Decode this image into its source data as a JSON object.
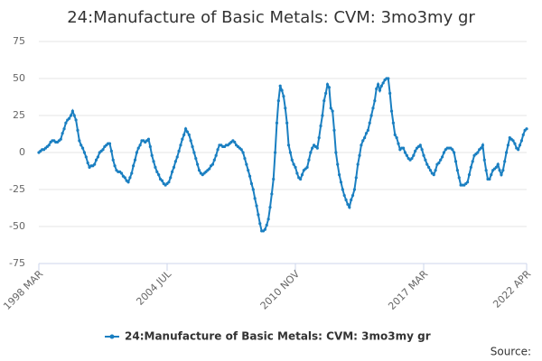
{
  "chart_data": {
    "type": "line",
    "title": "24:Manufacture of Basic Metals: CVM: 3mo3my gr",
    "source": "Source:",
    "categories": [
      "1998 MAR",
      null,
      null,
      null,
      null,
      null,
      null,
      null,
      null,
      null,
      null,
      null,
      null,
      null,
      null,
      null,
      null,
      null,
      null,
      null,
      null,
      null,
      null,
      null,
      null,
      null,
      null,
      null,
      null,
      null,
      null,
      null,
      null,
      null,
      null,
      null,
      null,
      null,
      null,
      null,
      null,
      null,
      null,
      null,
      null,
      null,
      null,
      null,
      null,
      null,
      null,
      null,
      null,
      null,
      null,
      null,
      null,
      null,
      null,
      null,
      null,
      null,
      null,
      null,
      null,
      null,
      null,
      null,
      null,
      null,
      null,
      null,
      null,
      null,
      null,
      null,
      "2004 JUL",
      null,
      null,
      null,
      null,
      null,
      null,
      null,
      null,
      null,
      null,
      null,
      null,
      null,
      null,
      null,
      null,
      null,
      null,
      null,
      null,
      null,
      null,
      null,
      null,
      null,
      null,
      null,
      null,
      null,
      null,
      null,
      null,
      null,
      null,
      null,
      null,
      null,
      null,
      null,
      null,
      null,
      null,
      null,
      null,
      null,
      null,
      null,
      null,
      null,
      null,
      null,
      null,
      null,
      null,
      null,
      null,
      null,
      null,
      null,
      null,
      null,
      null,
      null,
      null,
      null,
      null,
      null,
      null,
      null,
      null,
      null,
      null,
      null,
      null,
      null,
      "2010 NOV",
      null,
      null,
      null,
      null,
      null,
      null,
      null,
      null,
      null,
      null,
      null,
      null,
      null,
      null,
      null,
      null,
      null,
      null,
      null,
      null,
      null,
      null,
      null,
      null,
      null,
      null,
      null,
      null,
      null,
      null,
      null,
      null,
      null,
      null,
      null,
      null,
      null,
      null,
      null,
      null,
      null,
      null,
      null,
      null,
      null,
      null,
      null,
      null,
      null,
      null,
      null,
      null,
      null,
      null,
      null,
      null,
      null,
      null,
      null,
      null,
      null,
      null,
      null,
      null,
      null,
      null,
      null,
      null,
      null,
      null,
      null,
      null,
      null,
      null,
      null,
      "2017 MAR",
      null,
      null,
      null,
      null,
      null,
      null,
      null,
      null,
      null,
      null,
      null,
      null,
      null,
      null,
      null,
      null,
      null,
      null,
      null,
      null,
      null,
      null,
      null,
      null,
      null,
      null,
      null,
      null,
      null,
      null,
      null,
      null,
      null,
      null,
      null,
      null,
      null,
      null,
      null,
      null,
      null,
      null,
      null,
      null,
      null,
      null,
      null,
      null,
      null,
      null,
      null,
      null,
      null,
      null,
      null,
      null,
      null,
      null,
      null,
      null,
      "2022 APR"
    ],
    "series": [
      {
        "name": "24:Manufacture of Basic Metals: CVM: 3mo3my gr",
        "color": "#1a7fc1",
        "values": [
          0,
          1,
          2,
          2,
          3,
          4,
          5,
          7,
          8,
          8,
          7,
          7,
          8,
          9,
          13,
          16,
          20,
          22,
          23,
          25,
          28,
          25,
          22,
          15,
          8,
          5,
          3,
          0,
          -3,
          -7,
          -10,
          -9,
          -9,
          -8,
          -5,
          -3,
          0,
          1,
          2,
          4,
          5,
          6,
          6,
          1,
          -5,
          -9,
          -12,
          -13,
          -13,
          -14,
          -16,
          -17,
          -19,
          -20,
          -17,
          -14,
          -9,
          -5,
          0,
          3,
          5,
          8,
          8,
          7,
          8,
          9,
          4,
          -2,
          -6,
          -10,
          -13,
          -15,
          -18,
          -19,
          -21,
          -22,
          -21,
          -20,
          -17,
          -13,
          -10,
          -6,
          -3,
          1,
          5,
          9,
          12,
          16,
          14,
          12,
          8,
          4,
          0,
          -4,
          -8,
          -12,
          -14,
          -15,
          -14,
          -13,
          -12,
          -11,
          -9,
          -8,
          -5,
          -2,
          2,
          5,
          5,
          4,
          4,
          5,
          5,
          6,
          7,
          8,
          7,
          5,
          4,
          3,
          2,
          0,
          -4,
          -8,
          -12,
          -16,
          -21,
          -25,
          -31,
          -36,
          -42,
          -48,
          -53,
          -53,
          -52,
          -49,
          -45,
          -37,
          -28,
          -18,
          0,
          20,
          35,
          45,
          42,
          38,
          30,
          20,
          5,
          0,
          -5,
          -8,
          -10,
          -14,
          -17,
          -18,
          -15,
          -12,
          -11,
          -10,
          -5,
          0,
          3,
          5,
          4,
          3,
          10,
          18,
          25,
          35,
          40,
          46,
          44,
          30,
          28,
          15,
          0,
          -8,
          -15,
          -20,
          -25,
          -29,
          -32,
          -35,
          -37,
          -32,
          -29,
          -25,
          -17,
          -8,
          -2,
          5,
          8,
          10,
          13,
          15,
          20,
          25,
          30,
          35,
          43,
          46,
          42,
          45,
          47,
          49,
          50,
          50,
          40,
          28,
          20,
          12,
          10,
          6,
          2,
          3,
          3,
          0,
          -2,
          -4,
          -5,
          -4,
          -2,
          1,
          3,
          4,
          5,
          2,
          -2,
          -5,
          -8,
          -10,
          -12,
          -14,
          -15,
          -12,
          -8,
          -7,
          -5,
          -3,
          0,
          2,
          3,
          3,
          3,
          2,
          0,
          -6,
          -12,
          -17,
          -22,
          -22,
          -22,
          -21,
          -20,
          -15,
          -10,
          -6,
          -2,
          -1,
          0,
          2,
          3,
          5,
          -5,
          -12,
          -18,
          -18,
          -15,
          -12,
          -11,
          -10,
          -8,
          -12,
          -15,
          -12,
          -6,
          0,
          5,
          10,
          9,
          8,
          6,
          3,
          2,
          5,
          8,
          12,
          15,
          16
        ]
      }
    ],
    "ylim": [
      -75,
      75
    ],
    "yticks": [
      -75,
      -50,
      -25,
      0,
      25,
      50,
      75
    ],
    "grid": true
  }
}
